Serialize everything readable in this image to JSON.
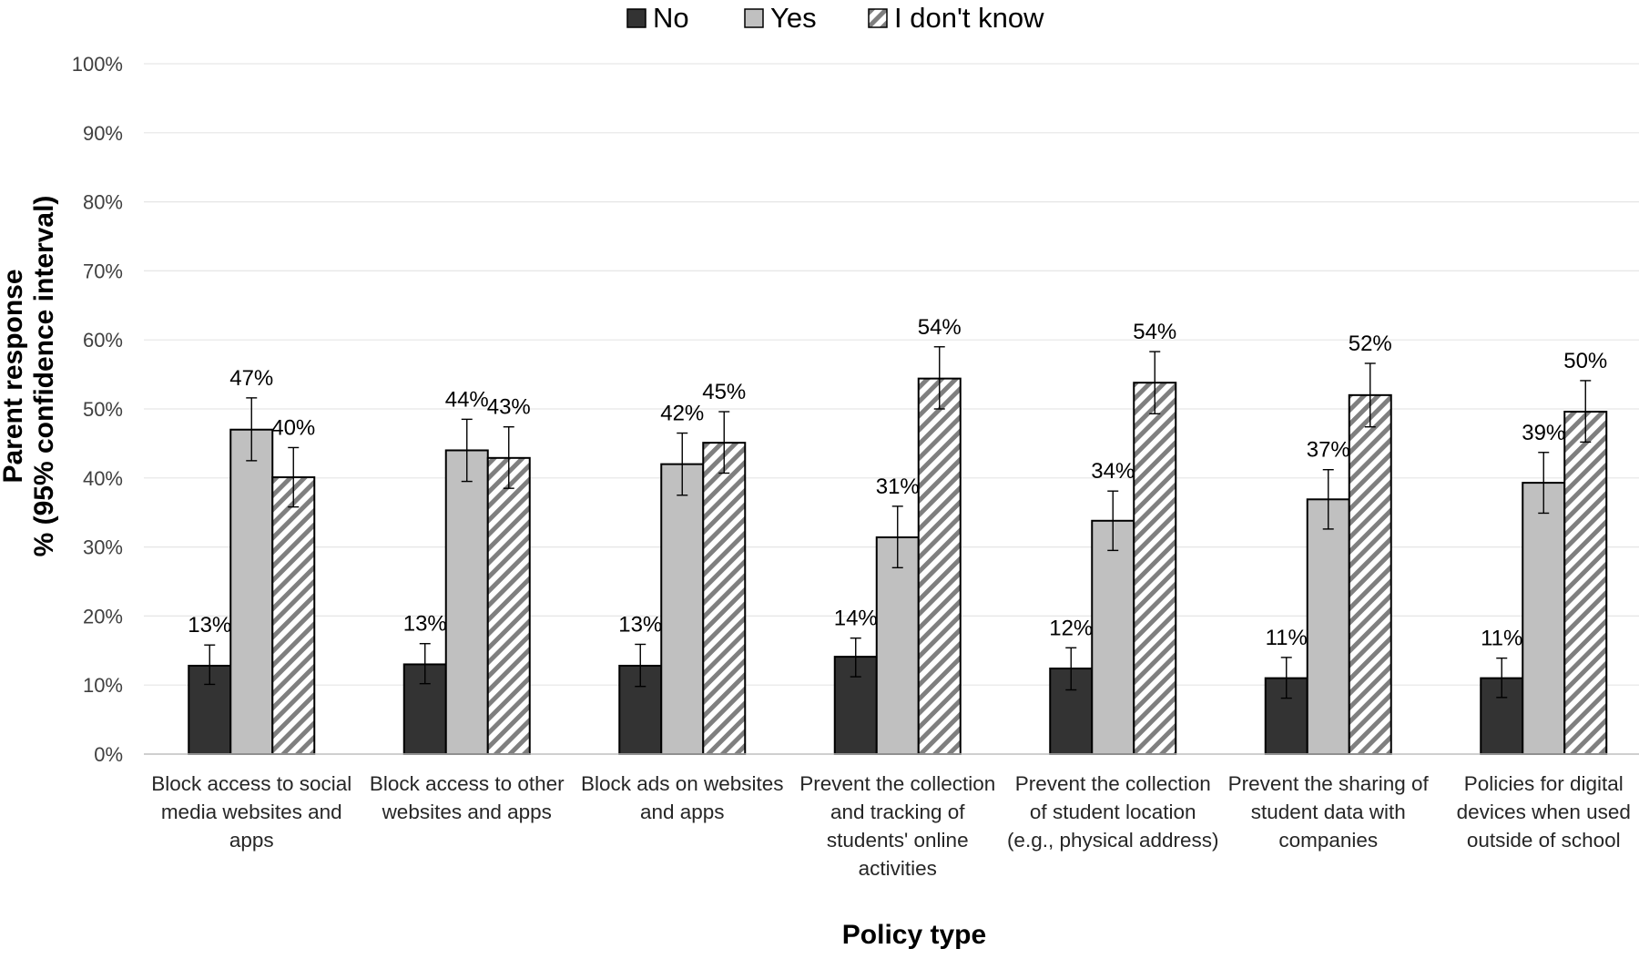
{
  "chart_data": {
    "type": "bar",
    "title": "",
    "xlabel": "Policy type",
    "ylabel_lines": [
      "Parent response",
      "% (95% confidence interval)"
    ],
    "ylim": [
      0,
      100
    ],
    "yticks": [
      0,
      10,
      20,
      30,
      40,
      50,
      60,
      70,
      80,
      90,
      100
    ],
    "ytick_labels": [
      "0%",
      "10%",
      "20%",
      "30%",
      "40%",
      "50%",
      "60%",
      "70%",
      "80%",
      "90%",
      "100%"
    ],
    "grid": true,
    "legend_position": "top-center",
    "categories": [
      [
        "Block access to social",
        "media websites and",
        "apps"
      ],
      [
        "Block access to other",
        "websites and apps"
      ],
      [
        "Block ads on websites",
        "and apps"
      ],
      [
        "Prevent the collection",
        "and tracking of",
        "students' online",
        "activities"
      ],
      [
        "Prevent the collection",
        "of student location",
        "(e.g., physical address)"
      ],
      [
        "Prevent the sharing of",
        "student data with",
        "companies"
      ],
      [
        "Policies for digital",
        "devices when used",
        "outside of school"
      ]
    ],
    "series": [
      {
        "name": "No",
        "color": "#333333",
        "pattern": "solid",
        "values": [
          12.8,
          13.0,
          12.8,
          14.1,
          12.4,
          11.0,
          11.0
        ],
        "labels": [
          "13%",
          "13%",
          "13%",
          "14%",
          "12%",
          "11%",
          "11%"
        ],
        "ci_low": [
          10.1,
          10.2,
          9.8,
          11.2,
          9.3,
          8.1,
          8.2
        ],
        "ci_high": [
          15.8,
          16.0,
          15.9,
          16.8,
          15.4,
          14.0,
          13.9
        ]
      },
      {
        "name": "Yes",
        "color": "#c0c0c0",
        "pattern": "solid",
        "values": [
          47.0,
          44.0,
          42.0,
          31.4,
          33.8,
          36.9,
          39.3
        ],
        "labels": [
          "47%",
          "44%",
          "42%",
          "31%",
          "34%",
          "37%",
          "39%"
        ],
        "ci_low": [
          42.5,
          39.5,
          37.5,
          27.0,
          29.5,
          32.6,
          34.9
        ],
        "ci_high": [
          51.6,
          48.5,
          46.5,
          35.9,
          38.1,
          41.2,
          43.7
        ]
      },
      {
        "name": "I don't know",
        "color": "#7f7f7f",
        "pattern": "hatch",
        "values": [
          40.1,
          42.9,
          45.1,
          54.4,
          53.8,
          52.0,
          49.6
        ],
        "labels": [
          "40%",
          "43%",
          "45%",
          "54%",
          "54%",
          "52%",
          "50%"
        ],
        "ci_low": [
          35.8,
          38.5,
          40.7,
          50.0,
          49.3,
          47.4,
          45.2
        ],
        "ci_high": [
          44.4,
          47.4,
          49.6,
          59.0,
          58.3,
          56.6,
          54.1
        ]
      }
    ]
  }
}
